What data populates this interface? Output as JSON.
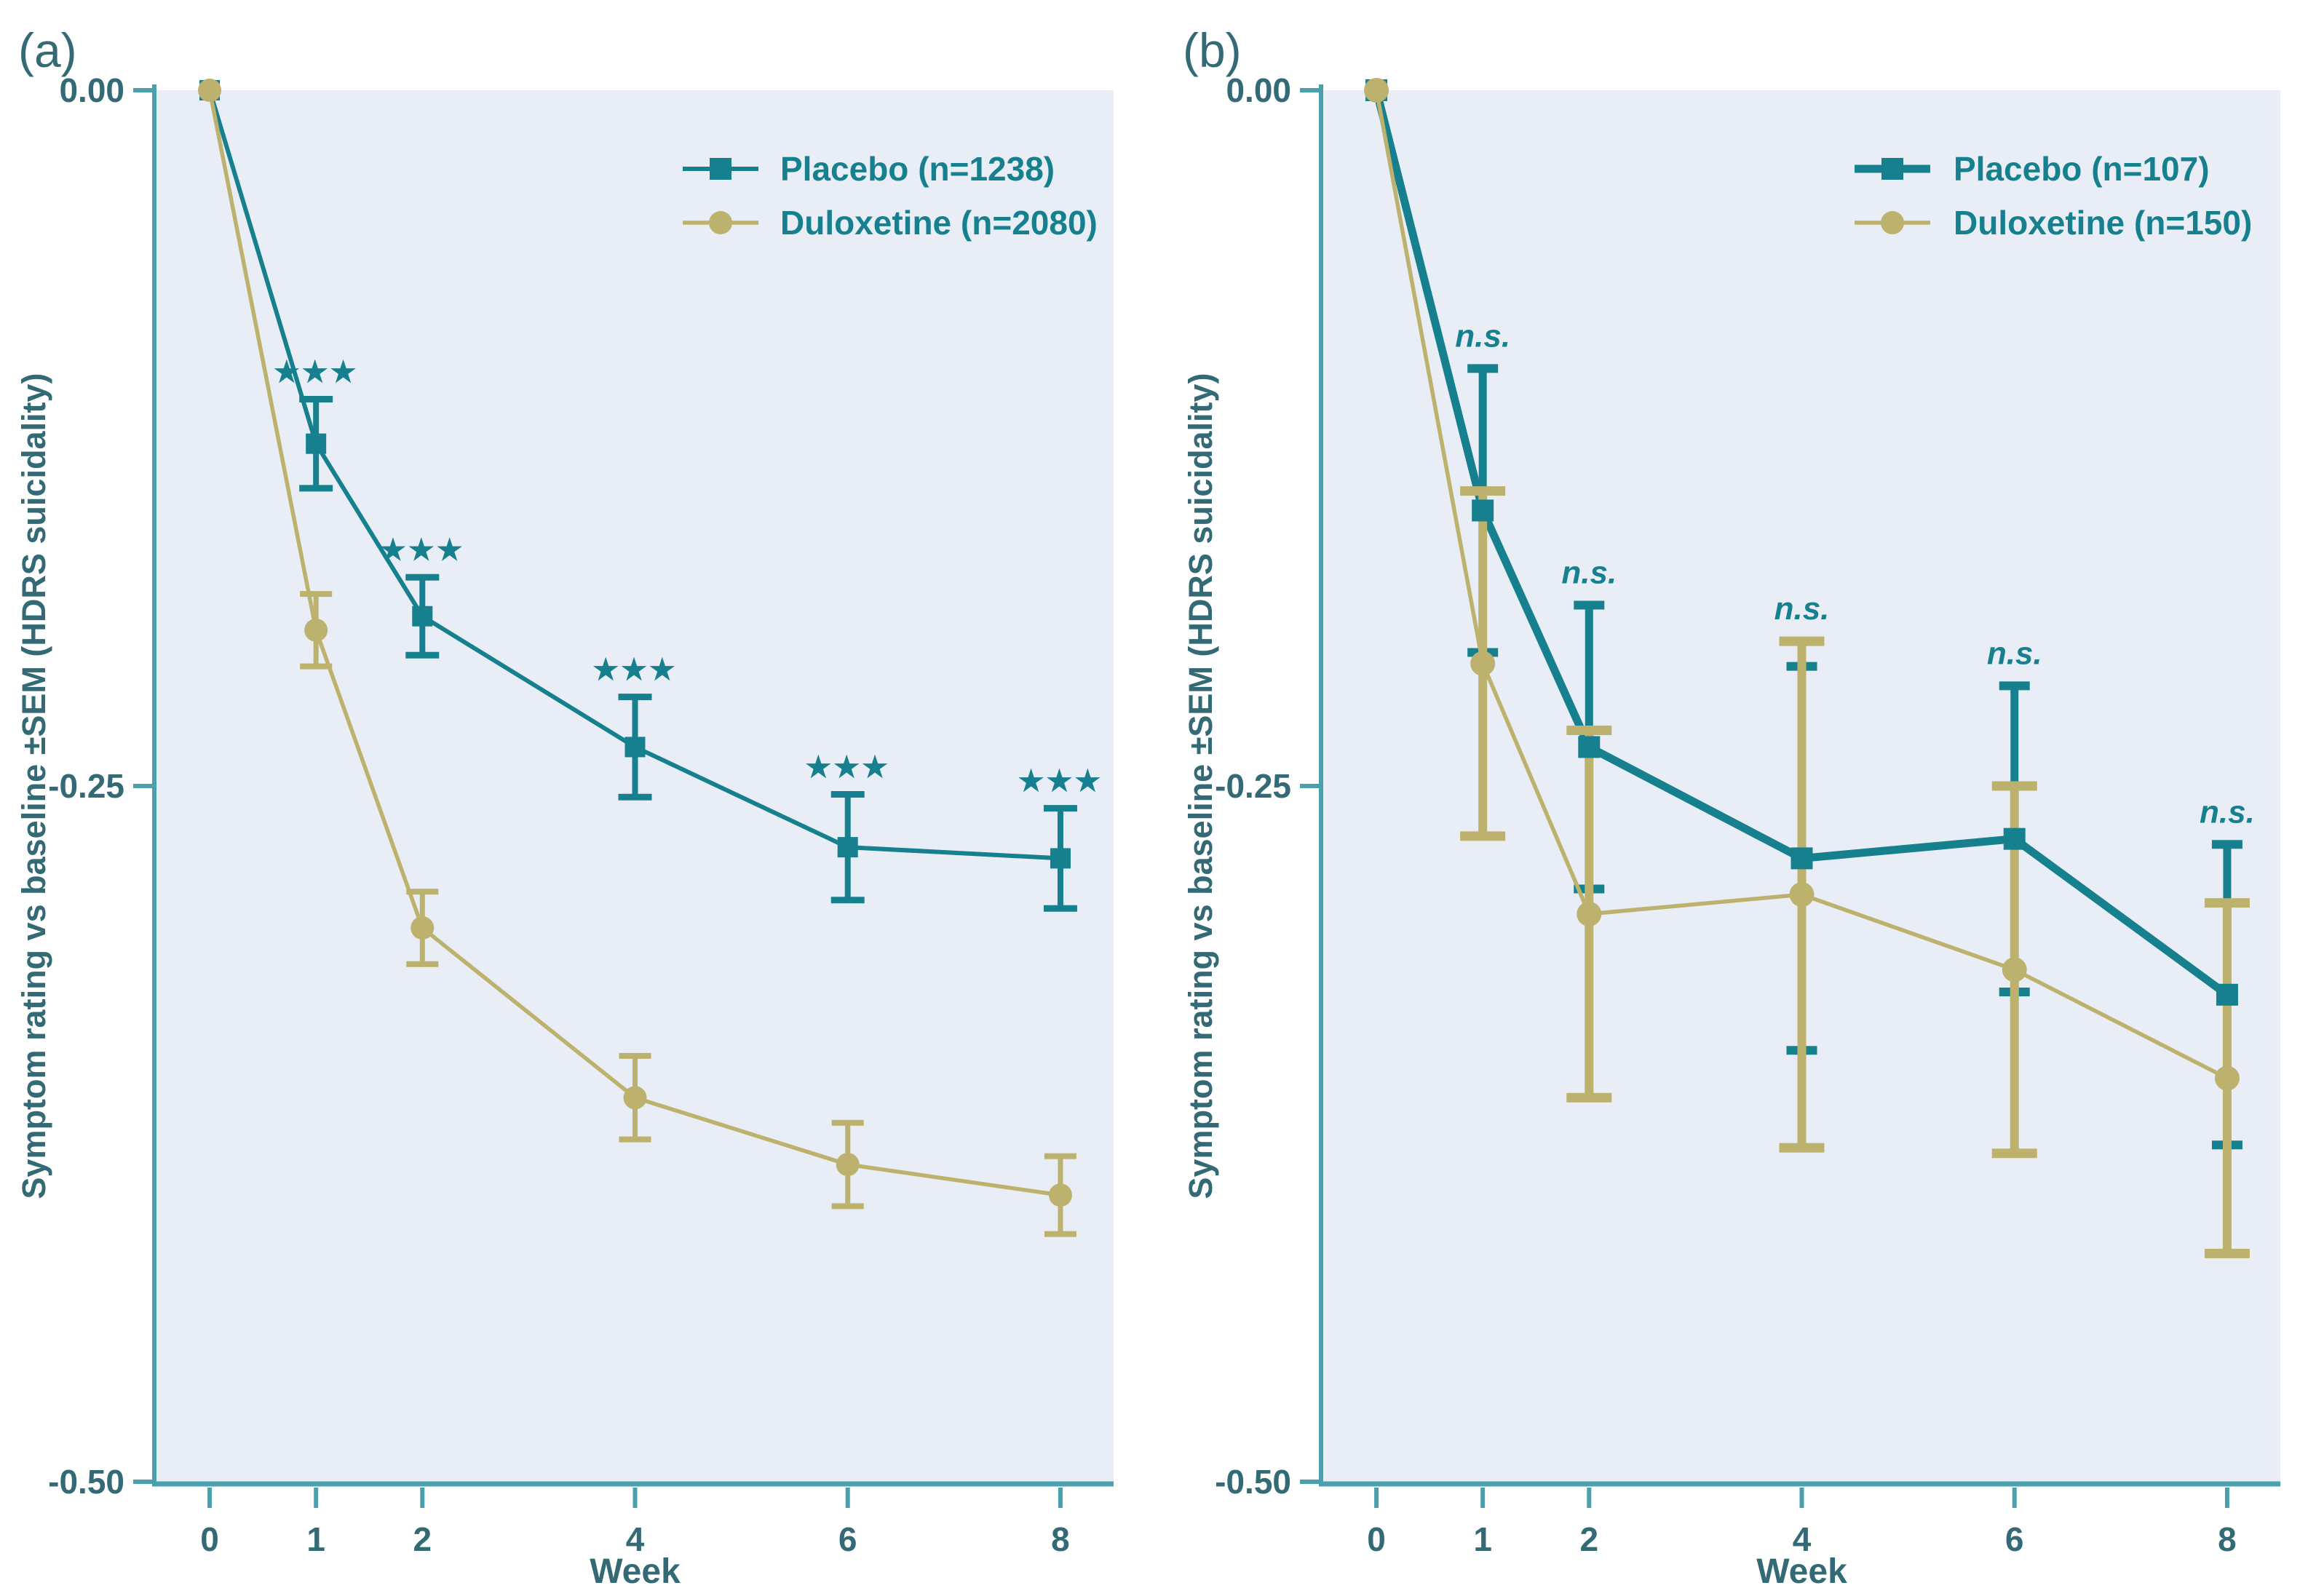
{
  "figure": {
    "background_color": "#ffffff",
    "plot_background_color": "#e9edf6",
    "axis_line_color": "#4ba0ad",
    "tick_text_color": "#336a75",
    "legend_text_color": "#17808e",
    "teal_color": "#17808e",
    "olive_color": "#bdb26d",
    "xlabel": "Week",
    "ylabel": "Symptom rating vs baseline ±SEM (HDRS suicidality)"
  },
  "chart_data": [
    {
      "type": "line",
      "panel_label": "(a)",
      "x": [
        0,
        1,
        2,
        4,
        6,
        8
      ],
      "x_tick_labels": [
        "0",
        "1",
        "2",
        "4",
        "6",
        "8"
      ],
      "xlabel": "Week",
      "ylabel": "Symptom rating vs baseline ±SEM (HDRS suicidality)",
      "xlim": [
        -0.5,
        8.5
      ],
      "ylim": [
        -0.5,
        0
      ],
      "grid": false,
      "legend_position": "upper-right-inside",
      "y_ticks": [
        {
          "value": 0,
          "label": "0.00"
        },
        {
          "value": -0.25,
          "label": "-0.25"
        },
        {
          "value": -0.5,
          "label": "-0.50"
        }
      ],
      "series": [
        {
          "name": "Placebo (n=1238)",
          "marker": "square",
          "color": "#17808e",
          "values": [
            0,
            -0.127,
            -0.189,
            -0.236,
            -0.272,
            -0.276
          ],
          "sem": [
            0,
            0.016,
            0.014,
            0.018,
            0.019,
            0.018
          ]
        },
        {
          "name": "Duloxetine (n=2080)",
          "marker": "circle",
          "color": "#bdb26d",
          "values": [
            0,
            -0.194,
            -0.301,
            -0.362,
            -0.386,
            -0.397
          ],
          "sem": [
            0,
            0.013,
            0.013,
            0.015,
            0.015,
            0.014
          ]
        }
      ],
      "annotations": [
        {
          "x": 1,
          "text": "★★★",
          "anchor_value": -0.111,
          "style": "stars"
        },
        {
          "x": 2,
          "text": "★★★",
          "anchor_value": -0.175,
          "style": "stars"
        },
        {
          "x": 4,
          "text": "★★★",
          "anchor_value": -0.218,
          "style": "stars"
        },
        {
          "x": 6,
          "text": "★★★",
          "anchor_value": -0.253,
          "style": "stars"
        },
        {
          "x": 8,
          "text": "★★★",
          "anchor_value": -0.258,
          "style": "stars"
        }
      ]
    },
    {
      "type": "line",
      "panel_label": "(b)",
      "x": [
        0,
        1,
        2,
        4,
        6,
        8
      ],
      "x_tick_labels": [
        "0",
        "1",
        "2",
        "4",
        "6",
        "8"
      ],
      "xlabel": "Week",
      "ylabel": "Symptom rating vs baseline ±SEM (HDRS suicidality)",
      "xlim": [
        -0.5,
        8.5
      ],
      "ylim": [
        -0.5,
        0
      ],
      "grid": false,
      "legend_position": "upper-right-inside",
      "y_ticks": [
        {
          "value": 0,
          "label": "0.00"
        },
        {
          "value": -0.25,
          "label": "-0.25"
        },
        {
          "value": -0.5,
          "label": "-0.50"
        }
      ],
      "series": [
        {
          "name": "Placebo (n=107)",
          "marker": "square",
          "color": "#17808e",
          "values": [
            0,
            -0.151,
            -0.236,
            -0.276,
            -0.269,
            -0.325
          ],
          "sem": [
            0,
            0.051,
            0.051,
            0.069,
            0.055,
            0.054
          ]
        },
        {
          "name": "Duloxetine (n=150)",
          "marker": "circle",
          "color": "#bdb26d",
          "values": [
            0,
            -0.206,
            -0.296,
            -0.289,
            -0.316,
            -0.355
          ],
          "sem": [
            0,
            0.062,
            0.066,
            0.091,
            0.066,
            0.063
          ]
        }
      ],
      "annotations": [
        {
          "x": 1,
          "text": "n.s.",
          "anchor_value": -0.1,
          "style": "ns"
        },
        {
          "x": 2,
          "text": "n.s.",
          "anchor_value": -0.185,
          "style": "ns"
        },
        {
          "x": 4,
          "text": "n.s.",
          "anchor_value": -0.198,
          "style": "ns"
        },
        {
          "x": 6,
          "text": "n.s.",
          "anchor_value": -0.214,
          "style": "ns"
        },
        {
          "x": 8,
          "text": "n.s.",
          "anchor_value": -0.271,
          "style": "ns"
        }
      ]
    }
  ]
}
